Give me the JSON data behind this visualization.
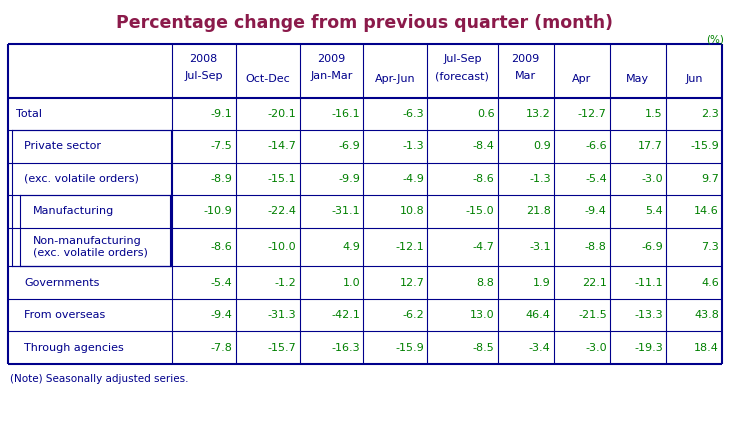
{
  "title": "Percentage change from previous quarter (month)",
  "title_color": "#8B1A4A",
  "percent_label": "(%)",
  "percent_color": "#006400",
  "note": "(Note) Seasonally adjusted series.",
  "rows": [
    {
      "label": "Total",
      "indent": 0,
      "values": [
        "-9.1",
        "-20.1",
        "-16.1",
        "-6.3",
        "0.6",
        "13.2",
        "-12.7",
        "1.5",
        "2.3"
      ]
    },
    {
      "label": "Private sector",
      "indent": 1,
      "values": [
        "-7.5",
        "-14.7",
        "-6.9",
        "-1.3",
        "-8.4",
        "0.9",
        "-6.6",
        "17.7",
        "-15.9"
      ]
    },
    {
      "label": "(exc. volatile orders)",
      "indent": 1,
      "values": [
        "-8.9",
        "-15.1",
        "-9.9",
        "-4.9",
        "-8.6",
        "-1.3",
        "-5.4",
        "-3.0",
        "9.7"
      ]
    },
    {
      "label": "Manufacturing",
      "indent": 2,
      "values": [
        "-10.9",
        "-22.4",
        "-31.1",
        "10.8",
        "-15.0",
        "21.8",
        "-9.4",
        "5.4",
        "14.6"
      ]
    },
    {
      "label": "Non-manufacturing\n(exc. volatile orders)",
      "indent": 2,
      "values": [
        "-8.6",
        "-10.0",
        "4.9",
        "-12.1",
        "-4.7",
        "-3.1",
        "-8.8",
        "-6.9",
        "7.3"
      ]
    },
    {
      "label": "Governments",
      "indent": 1,
      "values": [
        "-5.4",
        "-1.2",
        "1.0",
        "12.7",
        "8.8",
        "1.9",
        "22.1",
        "-11.1",
        "4.6"
      ]
    },
    {
      "label": "From overseas",
      "indent": 1,
      "values": [
        "-9.4",
        "-31.3",
        "-42.1",
        "-6.2",
        "13.0",
        "46.4",
        "-21.5",
        "-13.3",
        "43.8"
      ]
    },
    {
      "label": "Through agencies",
      "indent": 1,
      "values": [
        "-7.8",
        "-15.7",
        "-16.3",
        "-15.9",
        "-8.5",
        "-3.4",
        "-3.0",
        "-19.3",
        "18.4"
      ]
    }
  ],
  "header_entries": [
    {
      "lines": [
        "2008",
        "Jul-Sep"
      ],
      "col": 1
    },
    {
      "lines": [
        "",
        "Oct-Dec"
      ],
      "col": 2
    },
    {
      "lines": [
        "2009",
        "Jan-Mar"
      ],
      "col": 3
    },
    {
      "lines": [
        "",
        "Apr-Jun"
      ],
      "col": 4
    },
    {
      "lines": [
        "Jul-Sep",
        "(forecast)"
      ],
      "col": 5
    },
    {
      "lines": [
        "2009",
        "Mar"
      ],
      "col": 6
    },
    {
      "lines": [
        "",
        "Apr"
      ],
      "col": 7
    },
    {
      "lines": [
        "",
        "May"
      ],
      "col": 8
    },
    {
      "lines": [
        "",
        "Jun"
      ],
      "col": 9
    }
  ],
  "border_color": "#00008B",
  "header_text_color": "#00008B",
  "data_text_color": "#008000",
  "label_text_color": "#00008B",
  "bg_color": "#FFFFFF"
}
